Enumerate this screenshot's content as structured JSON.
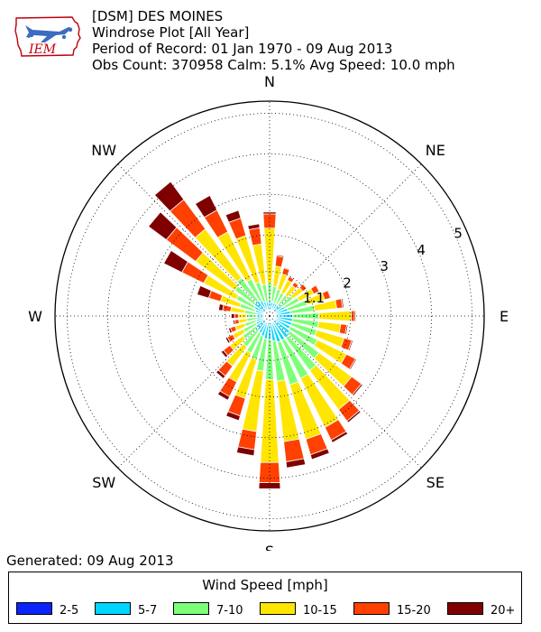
{
  "header": {
    "line1": "[DSM] DES MOINES",
    "line2": "Windrose Plot [All Year]",
    "line3": "Period of Record: 01 Jan 1970 - 09 Aug 2013",
    "line4": "Obs Count: 370958 Calm: 5.1% Avg Speed: 10.0 mph"
  },
  "logo_text": "IEM",
  "generated": "Generated: 09 Aug 2013",
  "legend": {
    "title": "Wind Speed [mph]",
    "items": [
      {
        "label": "2-5",
        "color": "#0b24fb"
      },
      {
        "label": "5-7",
        "color": "#00d5ff"
      },
      {
        "label": "7-10",
        "color": "#7dff7a"
      },
      {
        "label": "10-15",
        "color": "#ffe500"
      },
      {
        "label": "15-20",
        "color": "#ff4000"
      },
      {
        "label": "20+",
        "color": "#800000"
      }
    ]
  },
  "chart_data": {
    "type": "windrose",
    "direction_labels": [
      "N",
      "NE",
      "E",
      "SE",
      "S",
      "SW",
      "W",
      "NW"
    ],
    "radial_ticks": [
      1.1,
      2.0,
      3.0,
      4.0,
      5.0
    ],
    "rmax": 5.3,
    "speed_bins": [
      "2-5",
      "5-7",
      "7-10",
      "10-15",
      "15-20",
      "20+"
    ],
    "unit": "percent of observations",
    "sectors": [
      {
        "dir": 0,
        "values": [
          0.12,
          0.25,
          0.45,
          1.35,
          0.35,
          0.05
        ]
      },
      {
        "dir": 10,
        "values": [
          0.12,
          0.22,
          0.4,
          0.5,
          0.25,
          0.03
        ]
      },
      {
        "dir": 20,
        "values": [
          0.12,
          0.22,
          0.35,
          0.4,
          0.15,
          0.02
        ]
      },
      {
        "dir": 30,
        "values": [
          0.12,
          0.22,
          0.3,
          0.35,
          0.1,
          0.02
        ]
      },
      {
        "dir": 40,
        "values": [
          0.12,
          0.22,
          0.3,
          0.3,
          0.1,
          0.02
        ]
      },
      {
        "dir": 50,
        "values": [
          0.12,
          0.25,
          0.35,
          0.3,
          0.12,
          0.02
        ]
      },
      {
        "dir": 60,
        "values": [
          0.12,
          0.3,
          0.4,
          0.4,
          0.15,
          0.02
        ]
      },
      {
        "dir": 70,
        "values": [
          0.12,
          0.35,
          0.5,
          0.45,
          0.15,
          0.02
        ]
      },
      {
        "dir": 80,
        "values": [
          0.12,
          0.4,
          0.6,
          0.55,
          0.15,
          0.03
        ]
      },
      {
        "dir": 90,
        "values": [
          0.12,
          0.45,
          0.65,
          0.8,
          0.08,
          0.03
        ]
      },
      {
        "dir": 100,
        "values": [
          0.12,
          0.45,
          0.65,
          0.55,
          0.15,
          0.03
        ]
      },
      {
        "dir": 110,
        "values": [
          0.12,
          0.45,
          0.65,
          0.7,
          0.2,
          0.03
        ]
      },
      {
        "dir": 120,
        "values": [
          0.12,
          0.45,
          0.75,
          0.8,
          0.25,
          0.03
        ]
      },
      {
        "dir": 130,
        "values": [
          0.12,
          0.5,
          0.9,
          1.0,
          0.3,
          0.04
        ]
      },
      {
        "dir": 140,
        "values": [
          0.12,
          0.55,
          1.0,
          1.2,
          0.35,
          0.05
        ]
      },
      {
        "dir": 150,
        "values": [
          0.12,
          0.55,
          1.05,
          1.35,
          0.35,
          0.07
        ]
      },
      {
        "dir": 160,
        "values": [
          0.12,
          0.55,
          1.1,
          1.4,
          0.4,
          0.12
        ]
      },
      {
        "dir": 170,
        "values": [
          0.12,
          0.5,
          1.0,
          1.5,
          0.5,
          0.15
        ]
      },
      {
        "dir": 180,
        "values": [
          0.12,
          0.45,
          1.0,
          2.05,
          0.5,
          0.15
        ]
      },
      {
        "dir": 190,
        "values": [
          0.12,
          0.45,
          0.8,
          1.5,
          0.45,
          0.15
        ]
      },
      {
        "dir": 200,
        "values": [
          0.12,
          0.4,
          0.6,
          1.0,
          0.45,
          0.12
        ]
      },
      {
        "dir": 210,
        "values": [
          0.12,
          0.35,
          0.55,
          0.8,
          0.4,
          0.1
        ]
      },
      {
        "dir": 220,
        "values": [
          0.12,
          0.32,
          0.5,
          0.6,
          0.3,
          0.08
        ]
      },
      {
        "dir": 230,
        "values": [
          0.12,
          0.3,
          0.4,
          0.4,
          0.2,
          0.07
        ]
      },
      {
        "dir": 240,
        "values": [
          0.12,
          0.25,
          0.35,
          0.3,
          0.15,
          0.05
        ]
      },
      {
        "dir": 250,
        "values": [
          0.12,
          0.22,
          0.3,
          0.25,
          0.12,
          0.05
        ]
      },
      {
        "dir": 260,
        "values": [
          0.12,
          0.2,
          0.25,
          0.2,
          0.1,
          0.04
        ]
      },
      {
        "dir": 270,
        "values": [
          0.12,
          0.2,
          0.25,
          0.2,
          0.1,
          0.08
        ]
      },
      {
        "dir": 280,
        "values": [
          0.12,
          0.2,
          0.3,
          0.35,
          0.2,
          0.1
        ]
      },
      {
        "dir": 290,
        "values": [
          0.12,
          0.25,
          0.4,
          0.5,
          0.3,
          0.3
        ]
      },
      {
        "dir": 300,
        "values": [
          0.12,
          0.3,
          0.5,
          0.9,
          0.6,
          0.5
        ]
      },
      {
        "dir": 310,
        "values": [
          0.12,
          0.35,
          0.6,
          1.2,
          0.9,
          0.55
        ]
      },
      {
        "dir": 320,
        "values": [
          0.12,
          0.35,
          0.7,
          1.5,
          0.9,
          0.55
        ]
      },
      {
        "dir": 330,
        "values": [
          0.12,
          0.3,
          0.6,
          1.3,
          0.6,
          0.4
        ]
      },
      {
        "dir": 340,
        "values": [
          0.12,
          0.25,
          0.5,
          1.2,
          0.45,
          0.2
        ]
      },
      {
        "dir": 350,
        "values": [
          0.12,
          0.22,
          0.45,
          1.0,
          0.4,
          0.1
        ]
      }
    ]
  }
}
